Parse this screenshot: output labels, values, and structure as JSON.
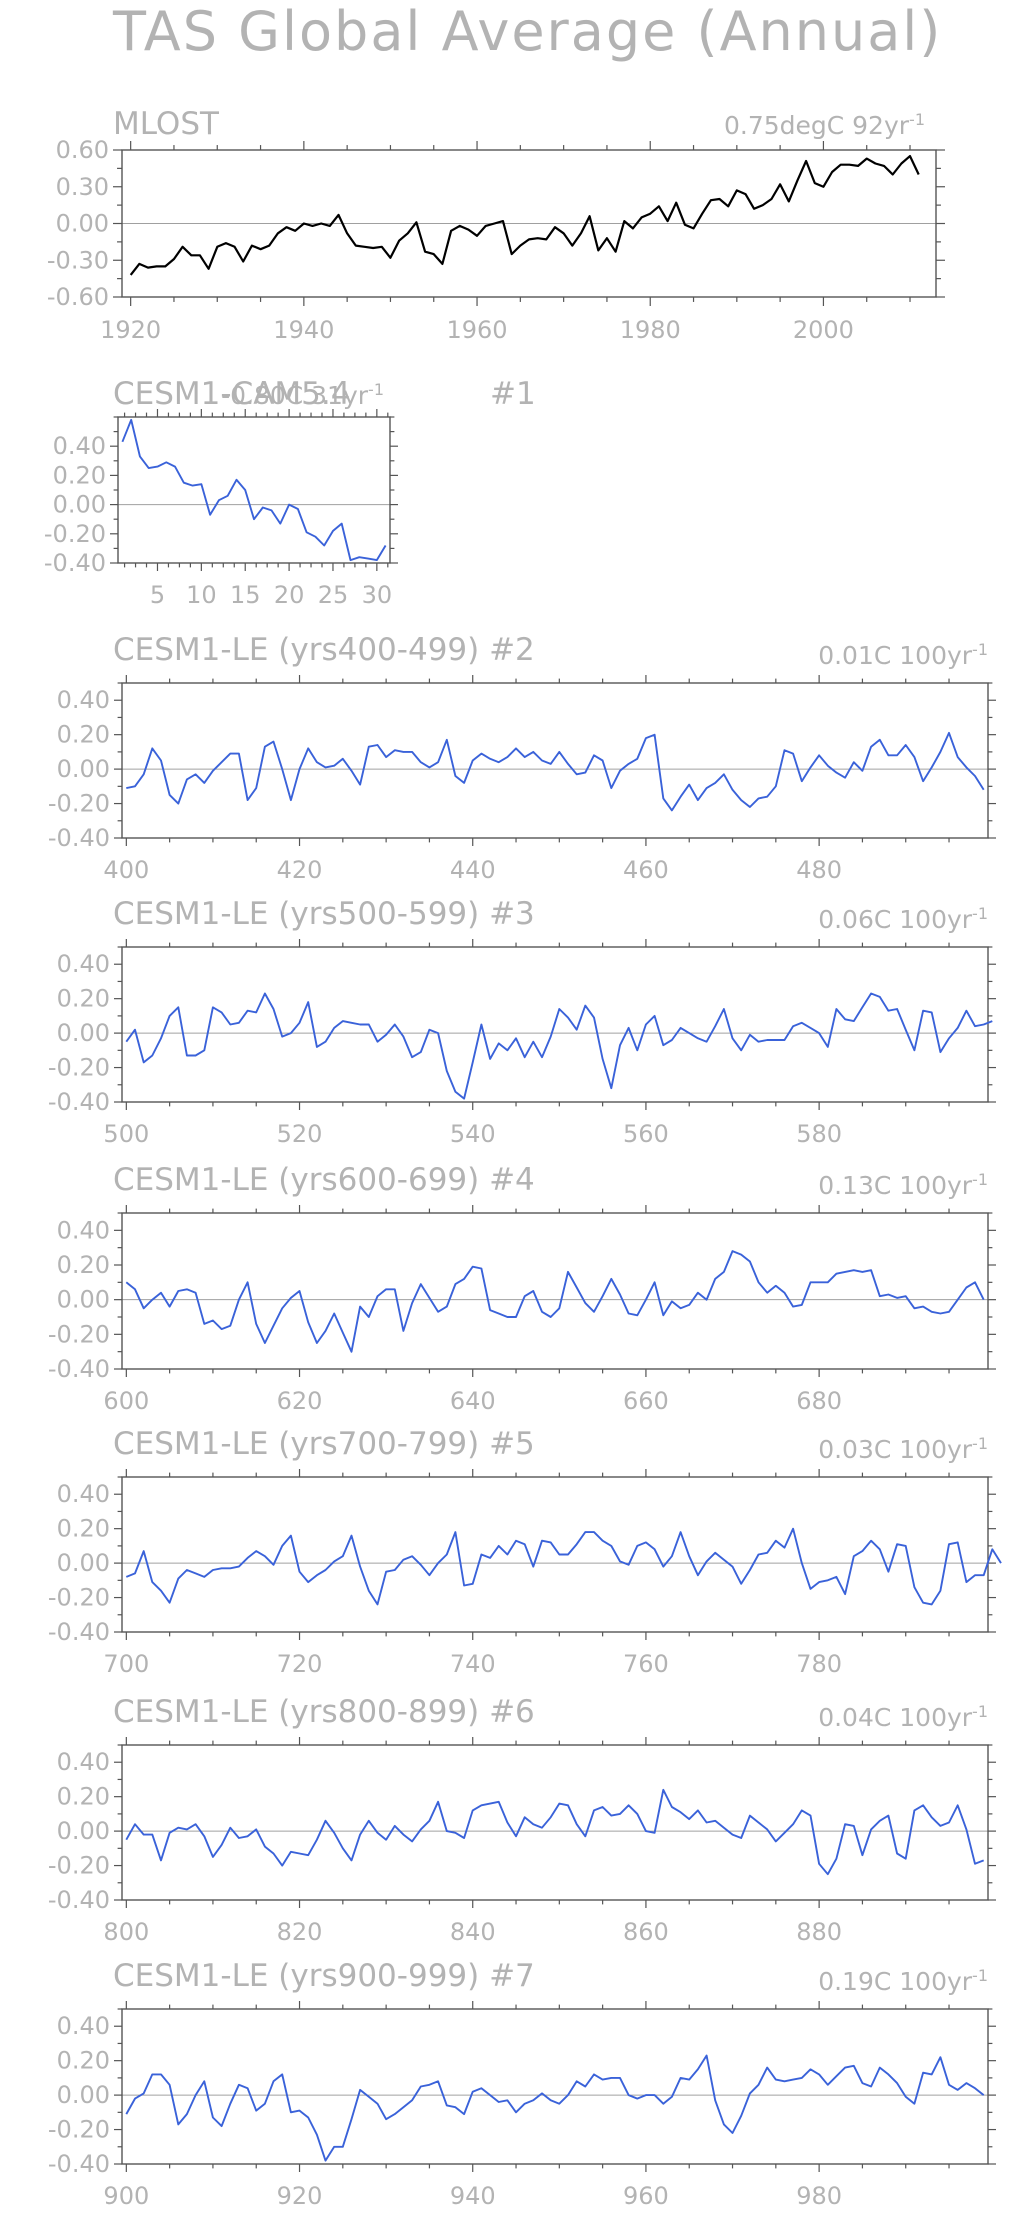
{
  "page_title": "TAS Global Average (Annual)",
  "trend_unit_suffix": "-1",
  "colors": {
    "observed": "#000000",
    "model": "#3a62d9",
    "text": "#b3b3b3",
    "axis": "#555555",
    "zero_line": "#a0a0a0"
  },
  "chart_data": [
    {
      "type": "line",
      "title": "MLOST",
      "trend": "0.75degC 92yr",
      "xlim": [
        1919,
        2013
      ],
      "ylim": [
        -0.6,
        0.6
      ],
      "xticks": [
        1920,
        1940,
        1960,
        1980,
        2000
      ],
      "yticks": [
        -0.6,
        -0.3,
        0.0,
        0.3,
        0.6
      ],
      "ytick_labels": [
        "-0.60",
        "-0.30",
        "0.00",
        "0.30",
        "0.60"
      ],
      "grid": false,
      "series": [
        {
          "x_start": 1920,
          "values": [
            -0.42,
            -0.33,
            -0.36,
            -0.35,
            -0.35,
            -0.29,
            -0.19,
            -0.26,
            -0.26,
            -0.37,
            -0.19,
            -0.16,
            -0.19,
            -0.31,
            -0.18,
            -0.21,
            -0.18,
            -0.08,
            -0.03,
            -0.06,
            0.0,
            -0.02,
            0.0,
            -0.02,
            0.07,
            -0.08,
            -0.18,
            -0.19,
            -0.2,
            -0.19,
            -0.28,
            -0.14,
            -0.08,
            0.01,
            -0.23,
            -0.25,
            -0.33,
            -0.06,
            -0.02,
            -0.05,
            -0.1,
            -0.02,
            0.0,
            0.02,
            -0.25,
            -0.18,
            -0.13,
            -0.12,
            -0.13,
            -0.03,
            -0.08,
            -0.18,
            -0.08,
            0.06,
            -0.22,
            -0.12,
            -0.23,
            0.02,
            -0.04,
            0.05,
            0.08,
            0.14,
            0.02,
            0.17,
            -0.01,
            -0.04,
            0.08,
            0.19,
            0.2,
            0.14,
            0.27,
            0.24,
            0.12,
            0.15,
            0.2,
            0.32,
            0.18,
            0.35,
            0.51,
            0.33,
            0.3,
            0.42,
            0.48,
            0.48,
            0.47,
            0.53,
            0.49,
            0.47,
            0.4,
            0.49,
            0.55,
            0.4
          ]
        }
      ]
    },
    {
      "type": "line",
      "title": "CESM1-CAM5.4",
      "trend": "-0.80C 31yr",
      "run_label": "#1",
      "xlim": [
        0.5,
        31.5
      ],
      "ylim": [
        -0.4,
        0.6
      ],
      "xticks": [
        5,
        10,
        15,
        20,
        25,
        30
      ],
      "yticks": [
        -0.4,
        -0.2,
        0.0,
        0.2,
        0.4
      ],
      "ytick_labels": [
        "-0.40",
        "-0.20",
        "0.00",
        "0.20",
        "0.40"
      ],
      "grid": false,
      "series": [
        {
          "x_start": 1,
          "values": [
            0.43,
            0.58,
            0.33,
            0.25,
            0.26,
            0.29,
            0.26,
            0.15,
            0.13,
            0.14,
            -0.07,
            0.03,
            0.06,
            0.17,
            0.1,
            -0.1,
            -0.02,
            -0.04,
            -0.13,
            0.0,
            -0.03,
            -0.19,
            -0.22,
            -0.28,
            -0.18,
            -0.13,
            -0.38,
            -0.36,
            -0.37,
            -0.38,
            -0.28
          ]
        }
      ]
    },
    {
      "type": "line",
      "title": "CESM1-LE (yrs400-499) #2",
      "trend": "0.01C 100yr",
      "xlim": [
        399.5,
        499.5
      ],
      "ylim": [
        -0.4,
        0.5
      ],
      "xticks": [
        400,
        420,
        440,
        460,
        480
      ],
      "yticks": [
        -0.4,
        -0.2,
        0.0,
        0.2,
        0.4
      ],
      "ytick_labels": [
        "-0.40",
        "-0.20",
        "0.00",
        "0.20",
        "0.40"
      ],
      "grid": false,
      "series": [
        {
          "x_start": 400,
          "values": [
            -0.11,
            -0.1,
            -0.03,
            0.12,
            0.05,
            -0.15,
            -0.2,
            -0.06,
            -0.03,
            -0.08,
            -0.01,
            0.04,
            0.09,
            0.09,
            -0.18,
            -0.11,
            0.13,
            0.16,
            0.0,
            -0.18,
            0.0,
            0.12,
            0.04,
            0.01,
            0.02,
            0.06,
            -0.01,
            -0.09,
            0.13,
            0.14,
            0.07,
            0.11,
            0.1,
            0.1,
            0.04,
            0.01,
            0.04,
            0.17,
            -0.04,
            -0.08,
            0.05,
            0.09,
            0.06,
            0.04,
            0.07,
            0.12,
            0.07,
            0.1,
            0.05,
            0.03,
            0.1,
            0.03,
            -0.03,
            -0.02,
            0.08,
            0.05,
            -0.11,
            -0.01,
            0.03,
            0.06,
            0.18,
            0.2,
            -0.17,
            -0.24,
            -0.16,
            -0.09,
            -0.18,
            -0.11,
            -0.08,
            -0.03,
            -0.12,
            -0.18,
            -0.22,
            -0.17,
            -0.16,
            -0.1,
            0.11,
            0.09,
            -0.07,
            0.01,
            0.08,
            0.02,
            -0.02,
            -0.05,
            0.04,
            -0.01,
            0.13,
            0.17,
            0.08,
            0.08,
            0.14,
            0.07,
            -0.07,
            0.01,
            0.1,
            0.21,
            0.07,
            0.01,
            -0.04,
            -0.12
          ]
        }
      ]
    },
    {
      "type": "line",
      "title": "CESM1-LE (yrs500-599) #3",
      "trend": "0.06C 100yr",
      "xlim": [
        499.5,
        599.5
      ],
      "ylim": [
        -0.4,
        0.5
      ],
      "xticks": [
        500,
        520,
        540,
        560,
        580
      ],
      "yticks": [
        -0.4,
        -0.2,
        0.0,
        0.2,
        0.4
      ],
      "ytick_labels": [
        "-0.40",
        "-0.20",
        "0.00",
        "0.20",
        "0.40"
      ],
      "grid": false,
      "series": [
        {
          "x_start": 500,
          "values": [
            -0.05,
            0.02,
            -0.17,
            -0.13,
            -0.03,
            0.1,
            0.15,
            -0.13,
            -0.13,
            -0.1,
            0.15,
            0.12,
            0.05,
            0.06,
            0.13,
            0.12,
            0.23,
            0.14,
            -0.02,
            0.0,
            0.06,
            0.18,
            -0.08,
            -0.05,
            0.03,
            0.07,
            0.06,
            0.05,
            0.05,
            -0.05,
            -0.01,
            0.05,
            -0.02,
            -0.14,
            -0.11,
            0.02,
            0.0,
            -0.22,
            -0.34,
            -0.38,
            -0.17,
            0.05,
            -0.15,
            -0.06,
            -0.1,
            -0.03,
            -0.14,
            -0.05,
            -0.14,
            -0.02,
            0.14,
            0.09,
            0.02,
            0.16,
            0.09,
            -0.15,
            -0.32,
            -0.07,
            0.03,
            -0.1,
            0.05,
            0.1,
            -0.07,
            -0.04,
            0.03,
            0.0,
            -0.03,
            -0.05,
            0.04,
            0.14,
            -0.03,
            -0.1,
            -0.01,
            -0.05,
            -0.04,
            -0.04,
            -0.04,
            0.04,
            0.06,
            0.03,
            0.0,
            -0.08,
            0.14,
            0.08,
            0.07,
            0.15,
            0.23,
            0.21,
            0.13,
            0.14,
            0.02,
            -0.1,
            0.13,
            0.12,
            -0.11,
            -0.03,
            0.03,
            0.13,
            0.04,
            0.05,
            0.07
          ]
        }
      ]
    },
    {
      "type": "line",
      "title": "CESM1-LE (yrs600-699) #4",
      "trend": "0.13C 100yr",
      "xlim": [
        599.5,
        699.5
      ],
      "ylim": [
        -0.4,
        0.5
      ],
      "xticks": [
        600,
        620,
        640,
        660,
        680
      ],
      "yticks": [
        -0.4,
        -0.2,
        0.0,
        0.2,
        0.4
      ],
      "ytick_labels": [
        "-0.40",
        "-0.20",
        "0.00",
        "0.20",
        "0.40"
      ],
      "grid": false,
      "series": [
        {
          "x_start": 600,
          "values": [
            0.1,
            0.06,
            -0.05,
            0.0,
            0.04,
            -0.04,
            0.05,
            0.06,
            0.04,
            -0.14,
            -0.12,
            -0.17,
            -0.15,
            0.0,
            0.1,
            -0.14,
            -0.25,
            -0.15,
            -0.05,
            0.01,
            0.05,
            -0.13,
            -0.25,
            -0.18,
            -0.08,
            -0.19,
            -0.3,
            -0.04,
            -0.1,
            0.02,
            0.06,
            0.06,
            -0.18,
            -0.02,
            0.09,
            0.01,
            -0.07,
            -0.04,
            0.09,
            0.12,
            0.19,
            0.18,
            -0.06,
            -0.08,
            -0.1,
            -0.1,
            0.02,
            0.05,
            -0.07,
            -0.1,
            -0.05,
            0.16,
            0.07,
            -0.02,
            -0.07,
            0.02,
            0.12,
            0.03,
            -0.08,
            -0.09,
            0.0,
            0.1,
            -0.09,
            -0.01,
            -0.05,
            -0.03,
            0.04,
            0.0,
            0.12,
            0.16,
            0.28,
            0.26,
            0.22,
            0.1,
            0.04,
            0.08,
            0.04,
            -0.04,
            -0.03,
            0.1,
            0.1,
            0.1,
            0.15,
            0.16,
            0.17,
            0.16,
            0.17,
            0.02,
            0.03,
            0.01,
            0.02,
            -0.05,
            -0.04,
            -0.07,
            -0.08,
            -0.07,
            0.0,
            0.07,
            0.1,
            0.0
          ]
        }
      ]
    },
    {
      "type": "line",
      "title": "CESM1-LE (yrs700-799) #5",
      "trend": "0.03C 100yr",
      "xlim": [
        699.5,
        799.5
      ],
      "ylim": [
        -0.4,
        0.5
      ],
      "xticks": [
        700,
        720,
        740,
        760,
        780
      ],
      "yticks": [
        -0.4,
        -0.2,
        0.0,
        0.2,
        0.4
      ],
      "ytick_labels": [
        "-0.40",
        "-0.20",
        "0.00",
        "0.20",
        "0.40"
      ],
      "grid": false,
      "series": [
        {
          "x_start": 700,
          "values": [
            -0.08,
            -0.06,
            0.07,
            -0.11,
            -0.16,
            -0.23,
            -0.09,
            -0.04,
            -0.06,
            -0.08,
            -0.04,
            -0.03,
            -0.03,
            -0.02,
            0.03,
            0.07,
            0.04,
            -0.01,
            0.1,
            0.16,
            -0.05,
            -0.11,
            -0.07,
            -0.04,
            0.01,
            0.04,
            0.16,
            -0.02,
            -0.16,
            -0.24,
            -0.05,
            -0.04,
            0.02,
            0.04,
            -0.01,
            -0.07,
            0.0,
            0.05,
            0.18,
            -0.13,
            -0.12,
            0.05,
            0.03,
            0.1,
            0.05,
            0.13,
            0.11,
            -0.02,
            0.13,
            0.12,
            0.05,
            0.05,
            0.11,
            0.18,
            0.18,
            0.13,
            0.1,
            0.01,
            -0.01,
            0.1,
            0.12,
            0.08,
            -0.02,
            0.04,
            0.18,
            0.04,
            -0.07,
            0.01,
            0.06,
            0.02,
            -0.02,
            -0.12,
            -0.04,
            0.05,
            0.06,
            0.13,
            0.09,
            0.2,
            0.0,
            -0.15,
            -0.11,
            -0.1,
            -0.08,
            -0.18,
            0.04,
            0.07,
            0.13,
            0.08,
            -0.05,
            0.11,
            0.1,
            -0.14,
            -0.23,
            -0.24,
            -0.16,
            0.11,
            0.12,
            -0.11,
            -0.07,
            -0.07,
            0.08,
            0.0
          ]
        }
      ]
    },
    {
      "type": "line",
      "title": "CESM1-LE (yrs800-899) #6",
      "trend": "0.04C 100yr",
      "xlim": [
        799.5,
        899.5
      ],
      "ylim": [
        -0.4,
        0.5
      ],
      "xticks": [
        800,
        820,
        840,
        860,
        880
      ],
      "yticks": [
        -0.4,
        -0.2,
        0.0,
        0.2,
        0.4
      ],
      "ytick_labels": [
        "-0.40",
        "-0.20",
        "0.00",
        "0.20",
        "0.40"
      ],
      "grid": false,
      "series": [
        {
          "x_start": 800,
          "values": [
            -0.05,
            0.04,
            -0.02,
            -0.02,
            -0.17,
            -0.01,
            0.02,
            0.01,
            0.04,
            -0.03,
            -0.15,
            -0.08,
            0.02,
            -0.04,
            -0.03,
            0.01,
            -0.09,
            -0.13,
            -0.2,
            -0.12,
            -0.13,
            -0.14,
            -0.05,
            0.06,
            -0.01,
            -0.1,
            -0.17,
            -0.02,
            0.06,
            -0.01,
            -0.05,
            0.03,
            -0.02,
            -0.06,
            0.01,
            0.06,
            0.17,
            0.0,
            -0.01,
            -0.04,
            0.12,
            0.15,
            0.16,
            0.17,
            0.05,
            -0.03,
            0.08,
            0.04,
            0.02,
            0.08,
            0.16,
            0.15,
            0.04,
            -0.03,
            0.12,
            0.14,
            0.09,
            0.1,
            0.15,
            0.1,
            0.0,
            -0.01,
            0.24,
            0.14,
            0.11,
            0.07,
            0.12,
            0.05,
            0.06,
            0.02,
            -0.02,
            -0.04,
            0.09,
            0.05,
            0.01,
            -0.06,
            -0.01,
            0.04,
            0.12,
            0.09,
            -0.19,
            -0.25,
            -0.16,
            0.04,
            0.03,
            -0.14,
            0.01,
            0.06,
            0.09,
            -0.13,
            -0.16,
            0.12,
            0.15,
            0.08,
            0.03,
            0.05,
            0.15,
            0.01,
            -0.19,
            -0.17
          ]
        }
      ]
    },
    {
      "type": "line",
      "title": "CESM1-LE (yrs900-999) #7",
      "trend": "0.19C 100yr",
      "xlim": [
        899.5,
        999.5
      ],
      "ylim": [
        -0.4,
        0.5
      ],
      "xticks": [
        900,
        920,
        940,
        960,
        980
      ],
      "yticks": [
        -0.4,
        -0.2,
        0.0,
        0.2,
        0.4
      ],
      "ytick_labels": [
        "-0.40",
        "-0.20",
        "0.00",
        "0.20",
        "0.40"
      ],
      "grid": false,
      "series": [
        {
          "x_start": 900,
          "values": [
            -0.11,
            -0.02,
            0.01,
            0.12,
            0.12,
            0.06,
            -0.17,
            -0.11,
            0.0,
            0.08,
            -0.13,
            -0.18,
            -0.05,
            0.06,
            0.04,
            -0.09,
            -0.05,
            0.08,
            0.12,
            -0.1,
            -0.09,
            -0.13,
            -0.23,
            -0.38,
            -0.3,
            -0.3,
            -0.14,
            0.03,
            -0.01,
            -0.05,
            -0.14,
            -0.11,
            -0.07,
            -0.03,
            0.05,
            0.06,
            0.08,
            -0.06,
            -0.07,
            -0.11,
            0.02,
            0.04,
            0.0,
            -0.04,
            -0.03,
            -0.1,
            -0.05,
            -0.03,
            0.01,
            -0.03,
            -0.05,
            0.0,
            0.08,
            0.05,
            0.12,
            0.09,
            0.1,
            0.1,
            0.0,
            -0.02,
            0.0,
            0.0,
            -0.05,
            -0.01,
            0.1,
            0.09,
            0.15,
            0.23,
            -0.03,
            -0.17,
            -0.22,
            -0.12,
            0.01,
            0.06,
            0.16,
            0.09,
            0.08,
            0.09,
            0.1,
            0.15,
            0.12,
            0.06,
            0.11,
            0.16,
            0.17,
            0.07,
            0.05,
            0.16,
            0.12,
            0.07,
            -0.01,
            -0.05,
            0.13,
            0.12,
            0.22,
            0.06,
            0.03,
            0.07,
            0.04,
            0.0
          ]
        }
      ]
    }
  ]
}
